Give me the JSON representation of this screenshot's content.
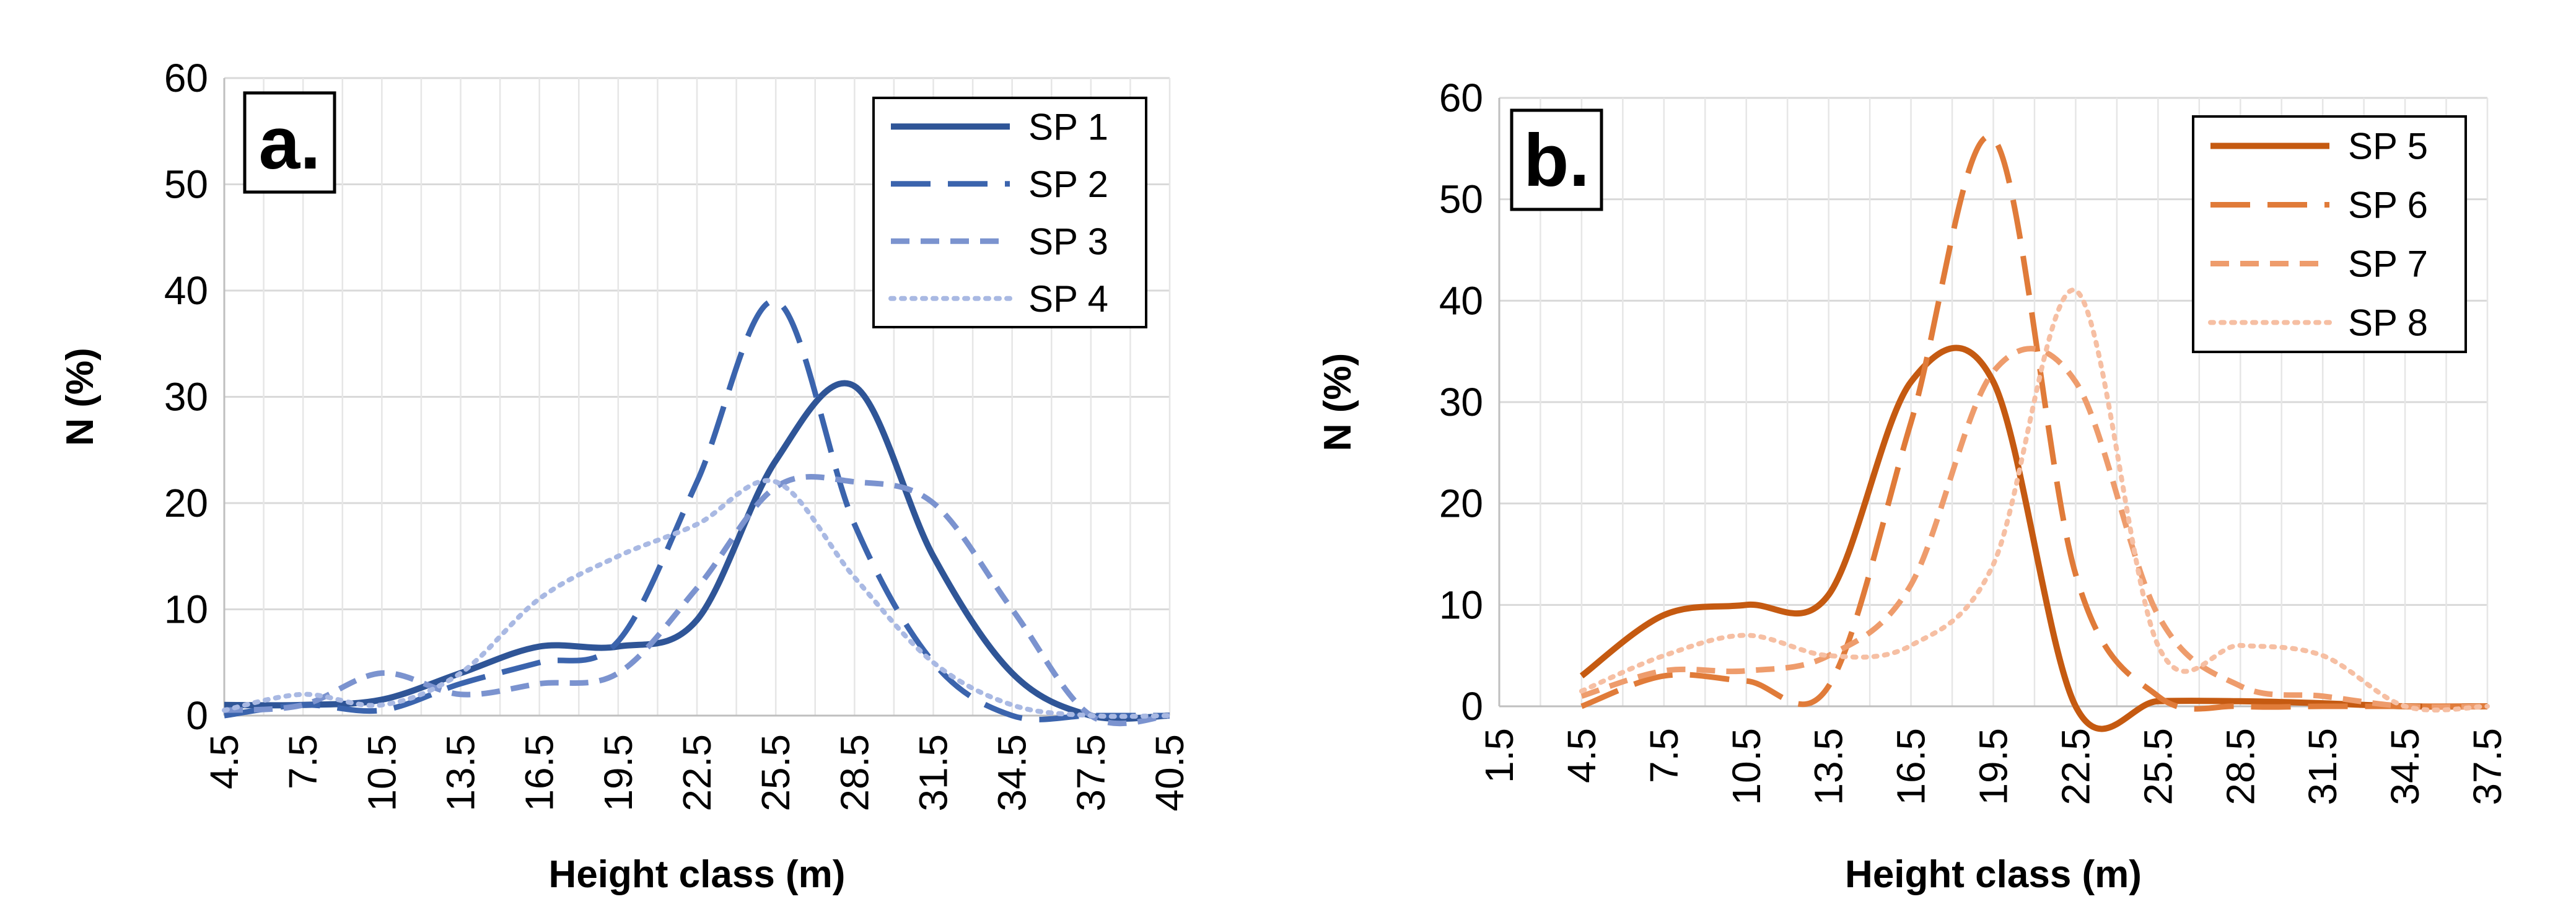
{
  "chart_data": [
    {
      "type": "line",
      "panel_label": "a.",
      "xlabel": "Height class (m)",
      "ylabel": "N (%)",
      "categories": [
        "4.5",
        "7.5",
        "10.5",
        "13.5",
        "16.5",
        "19.5",
        "22.5",
        "25.5",
        "28.5",
        "31.5",
        "34.5",
        "37.5",
        "40.5"
      ],
      "x_range": [
        4.5,
        40.5
      ],
      "ylim": [
        0,
        60
      ],
      "yticks": [
        "0",
        "10",
        "20",
        "30",
        "40",
        "50",
        "60"
      ],
      "grid": true,
      "legend_position": "top-right",
      "series": [
        {
          "name": "SP 1",
          "style": "solid",
          "color": "#2f5597",
          "x": [
            4.5,
            7.5,
            10.5,
            13.5,
            16.5,
            19.5,
            22.5,
            25.5,
            28.5,
            31.5,
            34.5,
            37.5,
            40.5
          ],
          "values": [
            1,
            1,
            1.5,
            4,
            6.5,
            6.5,
            9,
            24,
            31,
            15,
            4,
            0,
            0
          ]
        },
        {
          "name": "SP 2",
          "style": "dash",
          "color": "#3b64ad",
          "x": [
            4.5,
            7.5,
            10.5,
            13.5,
            16.5,
            19.5,
            22.5,
            25.5,
            28.5,
            31.5,
            34.5,
            37.5,
            40.5
          ],
          "values": [
            0,
            1,
            0.5,
            3,
            5,
            7,
            22,
            39,
            18,
            5,
            0,
            0,
            0
          ]
        },
        {
          "name": "SP 3",
          "style": "short-dash",
          "color": "#7b93cf",
          "x": [
            4.5,
            7.5,
            10.5,
            13.5,
            16.5,
            19.5,
            22.5,
            25.5,
            28.5,
            31.5,
            34.5,
            37.5,
            40.5
          ],
          "values": [
            0.5,
            1,
            4,
            2,
            3,
            4,
            12,
            21.5,
            22,
            20,
            10,
            0,
            0
          ]
        },
        {
          "name": "SP 4",
          "style": "dot",
          "color": "#a9b9e3",
          "x": [
            4.5,
            7.5,
            10.5,
            13.5,
            16.5,
            19.5,
            22.5,
            25.5,
            28.5,
            31.5,
            34.5,
            37.5,
            40.5
          ],
          "values": [
            0.5,
            2,
            1,
            4,
            11,
            15,
            18,
            22,
            13,
            5,
            1,
            0,
            0
          ]
        }
      ]
    },
    {
      "type": "line",
      "panel_label": "b.",
      "xlabel": "Height class (m)",
      "ylabel": "N (%)",
      "categories": [
        "1.5",
        "4.5",
        "7.5",
        "10.5",
        "13.5",
        "16.5",
        "19.5",
        "22.5",
        "25.5",
        "28.5",
        "31.5",
        "34.5",
        "37.5"
      ],
      "x_range": [
        1.5,
        37.5
      ],
      "ylim": [
        0,
        60
      ],
      "yticks": [
        "0",
        "10",
        "20",
        "30",
        "40",
        "50",
        "60"
      ],
      "grid": true,
      "legend_position": "top-right",
      "series": [
        {
          "name": "SP 5",
          "style": "solid",
          "color": "#c55a11",
          "x": [
            4.5,
            7.5,
            10.5,
            13.5,
            16.5,
            19.5,
            22.5,
            25.5,
            28.5,
            31.5,
            34.5,
            37.5
          ],
          "values": [
            3,
            9,
            10,
            11,
            32,
            32,
            0,
            0.5,
            0.5,
            0.3,
            0,
            0
          ]
        },
        {
          "name": "SP 6",
          "style": "dash",
          "color": "#e07b39",
          "x": [
            4.5,
            7.5,
            10.5,
            13.5,
            16.5,
            19.5,
            22.5,
            25.5,
            28.5,
            31.5,
            34.5,
            37.5
          ],
          "values": [
            0,
            3,
            2.5,
            2,
            28,
            56,
            13,
            1,
            0,
            0,
            0,
            0
          ]
        },
        {
          "name": "SP 7",
          "style": "short-dash",
          "color": "#ee9c6c",
          "x": [
            4.5,
            7.5,
            10.5,
            13.5,
            16.5,
            19.5,
            22.5,
            25.5,
            28.5,
            31.5,
            34.5,
            37.5
          ],
          "values": [
            1,
            3.5,
            3.5,
            5,
            12,
            33,
            32,
            9,
            2,
            1,
            0,
            0
          ]
        },
        {
          "name": "SP 8",
          "style": "dot",
          "color": "#f6bfa3",
          "x": [
            4.5,
            7.5,
            10.5,
            13.5,
            16.5,
            19.5,
            22.5,
            25.5,
            28.5,
            31.5,
            34.5,
            37.5
          ],
          "values": [
            1.5,
            5,
            7,
            5,
            6,
            14,
            41,
            6,
            6,
            5,
            0,
            0
          ]
        }
      ]
    }
  ]
}
